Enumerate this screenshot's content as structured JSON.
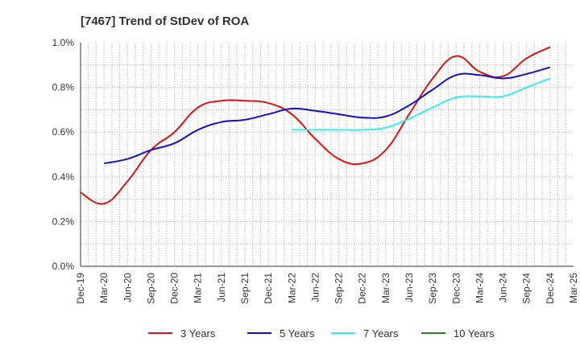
{
  "chart_data": {
    "type": "line",
    "title": "[7467]  Trend of StDev of ROA",
    "xlabel": "",
    "ylabel": "",
    "x": [
      "Dec-19",
      "Mar-20",
      "Jun-20",
      "Sep-20",
      "Dec-20",
      "Mar-21",
      "Jun-21",
      "Sep-21",
      "Dec-21",
      "Mar-22",
      "Jun-22",
      "Sep-22",
      "Dec-22",
      "Mar-23",
      "Jun-23",
      "Sep-23",
      "Dec-23",
      "Mar-24",
      "Jun-24",
      "Sep-24",
      "Dec-24",
      "Mar-25"
    ],
    "ylim": [
      0,
      1.0
    ],
    "yticks": [
      "0.0%",
      "0.2%",
      "0.4%",
      "0.6%",
      "0.8%",
      "1.0%"
    ],
    "grid": true,
    "legend_position": "bottom",
    "colors": {
      "3 Years": "#dd1111",
      "5 Years": "#1111cc",
      "7 Years": "#33eeee",
      "10 Years": "#228822"
    },
    "series": [
      {
        "name": "3 Years",
        "color": "#dd1111",
        "values": [
          0.33,
          0.28,
          0.38,
          0.52,
          0.6,
          0.71,
          0.74,
          0.74,
          0.73,
          0.68,
          0.57,
          0.48,
          0.46,
          0.52,
          0.68,
          0.84,
          0.94,
          0.87,
          0.85,
          0.93,
          0.98,
          null
        ]
      },
      {
        "name": "5 Years",
        "color": "#1111cc",
        "values": [
          null,
          0.46,
          0.48,
          0.52,
          0.55,
          0.61,
          0.645,
          0.655,
          0.68,
          0.705,
          0.695,
          0.68,
          0.665,
          0.67,
          0.72,
          0.79,
          0.855,
          0.855,
          0.84,
          0.86,
          0.89,
          null
        ]
      },
      {
        "name": "7 Years",
        "color": "#33eeee",
        "values": [
          null,
          null,
          null,
          null,
          null,
          null,
          null,
          null,
          null,
          0.61,
          0.61,
          0.61,
          0.61,
          0.62,
          0.66,
          0.71,
          0.755,
          0.76,
          0.76,
          0.8,
          0.84,
          null
        ]
      },
      {
        "name": "10 Years",
        "color": "#228822",
        "values": [
          null,
          null,
          null,
          null,
          null,
          null,
          null,
          null,
          null,
          null,
          null,
          null,
          null,
          null,
          null,
          null,
          null,
          null,
          null,
          null,
          null,
          null
        ]
      }
    ]
  }
}
